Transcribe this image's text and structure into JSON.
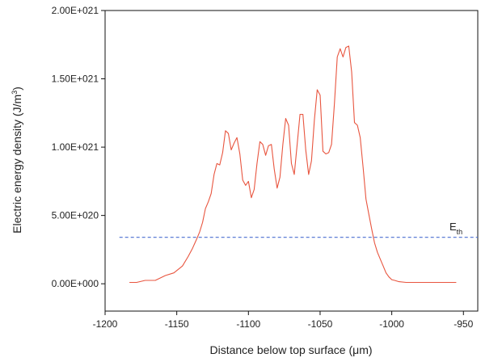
{
  "chart_data": {
    "type": "line",
    "xlabel": "Distance below top surface (μm)",
    "ylabel": "Electric energy density (J/m3)",
    "ylabel_main": "Electric energy density (J/m",
    "ylabel_sup": "3",
    "ylabel_end": ")",
    "xlim": [
      -1200,
      -940
    ],
    "ylim": [
      -2e+20,
      2e+21
    ],
    "x_ticks": [
      -1200,
      -1150,
      -1100,
      -1050,
      -1000,
      -950
    ],
    "x_tick_labels": [
      "-1200",
      "-1150",
      "-1100",
      "-1050",
      "-1000",
      "-950"
    ],
    "y_ticks": [
      0,
      5e+20,
      1e+21,
      1.5e+21,
      2e+21
    ],
    "y_tick_labels": [
      "0.00E+000",
      "5.00E+020",
      "1.00E+021",
      "1.50E+021",
      "2.00E+021"
    ],
    "grid": false,
    "series": [
      {
        "color": "#e8553f",
        "style": "solid",
        "x": [
          -1183,
          -1178,
          -1172,
          -1165,
          -1158,
          -1152,
          -1146,
          -1142,
          -1139,
          -1136,
          -1134,
          -1132,
          -1130,
          -1128,
          -1126,
          -1124,
          -1122,
          -1120,
          -1118,
          -1116,
          -1114,
          -1112,
          -1110,
          -1108,
          -1106,
          -1104,
          -1102,
          -1100,
          -1098,
          -1096,
          -1094,
          -1092,
          -1090,
          -1088,
          -1086,
          -1084,
          -1082,
          -1080,
          -1078,
          -1076,
          -1074,
          -1072,
          -1070,
          -1068,
          -1066,
          -1064,
          -1062,
          -1060,
          -1058,
          -1056,
          -1054,
          -1052,
          -1050,
          -1048,
          -1046,
          -1044,
          -1042,
          -1040,
          -1038,
          -1036,
          -1034,
          -1032,
          -1030,
          -1028,
          -1026,
          -1024,
          -1022,
          -1020,
          -1018,
          -1016,
          -1014,
          -1012,
          -1010,
          -1008,
          -1006,
          -1004,
          -1002,
          -1000,
          -998,
          -995,
          -990,
          -985,
          -980,
          -975,
          -970,
          -965,
          -960,
          -955
        ],
        "y": [
          1e+19,
          1e+19,
          2.5e+19,
          2.5e+19,
          6e+19,
          8e+19,
          1.3e+20,
          2e+20,
          2.6e+20,
          3.3e+20,
          3.8e+20,
          4.5e+20,
          5.5e+20,
          6e+20,
          6.6e+20,
          8e+20,
          8.8e+20,
          8.7e+20,
          9.6e+20,
          1.12e+21,
          1.1e+21,
          9.8e+20,
          1.03e+21,
          1.07e+21,
          9.5e+20,
          7.6e+20,
          7.2e+20,
          7.5e+20,
          6.3e+20,
          6.9e+20,
          8.8e+20,
          1.04e+21,
          1.02e+21,
          9.4e+20,
          1.01e+21,
          1.02e+21,
          8.4e+20,
          7e+20,
          7.8e+20,
          1.02e+21,
          1.21e+21,
          1.16e+21,
          8.8e+20,
          8e+20,
          1.02e+21,
          1.24e+21,
          1.24e+21,
          9.8e+20,
          8e+20,
          9e+20,
          1.2e+21,
          1.42e+21,
          1.38e+21,
          9.7e+20,
          9.5e+20,
          9.6e+20,
          1.02e+21,
          1.32e+21,
          1.66e+21,
          1.72e+21,
          1.66e+21,
          1.73e+21,
          1.74e+21,
          1.55e+21,
          1.18e+21,
          1.16e+21,
          1.07e+21,
          8.5e+20,
          6.2e+20,
          5.1e+20,
          4e+20,
          3e+20,
          2.3e+20,
          1.8e+20,
          1.3e+20,
          8e+19,
          5e+19,
          3e+19,
          2.5e+19,
          1.5e+19,
          1e+19,
          1e+19,
          1e+19,
          1e+19,
          1e+19,
          1e+19,
          1e+19,
          1e+19
        ]
      },
      {
        "color": "#4a6fd0",
        "style": "dashed",
        "x": [
          -1190,
          -940
        ],
        "y": [
          3.4e+20,
          3.4e+20
        ]
      }
    ],
    "annotation_main": "E",
    "annotation_sub": "th"
  }
}
